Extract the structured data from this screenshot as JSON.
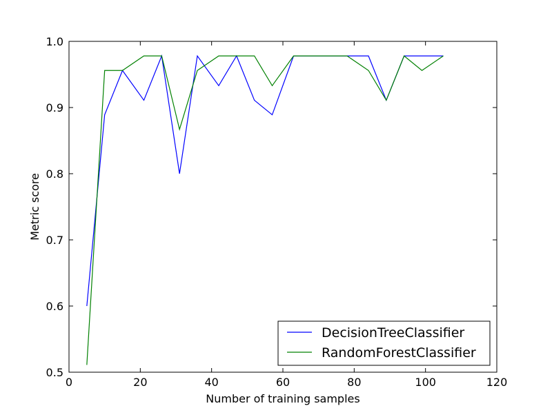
{
  "chart_data": {
    "type": "line",
    "title": "",
    "xlabel": "Number of training samples",
    "ylabel": "Metric score",
    "xlim": [
      0,
      120
    ],
    "ylim": [
      0.5,
      1.0
    ],
    "x_ticks": [
      0,
      20,
      40,
      60,
      80,
      100,
      120
    ],
    "y_ticks": [
      0.5,
      0.6,
      0.7,
      0.8,
      0.9,
      1.0
    ],
    "x_tick_labels": [
      "0",
      "20",
      "40",
      "60",
      "80",
      "100",
      "120"
    ],
    "y_tick_labels": [
      "0.5",
      "0.6",
      "0.7",
      "0.8",
      "0.9",
      "1.0"
    ],
    "grid": false,
    "legend_position": "lower-right",
    "x": [
      5,
      10,
      15,
      21,
      26,
      31,
      36,
      42,
      47,
      52,
      57,
      63,
      68,
      73,
      78,
      84,
      89,
      94,
      99,
      105
    ],
    "series": [
      {
        "name": "DecisionTreeClassifier",
        "color": "#0000ff",
        "values": [
          0.6,
          0.889,
          0.956,
          0.911,
          0.978,
          0.8,
          0.978,
          0.933,
          0.978,
          0.911,
          0.889,
          0.978,
          0.978,
          0.978,
          0.978,
          0.978,
          0.911,
          0.978,
          0.978,
          0.978
        ]
      },
      {
        "name": "RandomForestClassifier",
        "color": "#008000",
        "values": [
          0.511,
          0.956,
          0.956,
          0.978,
          0.978,
          0.867,
          0.956,
          0.978,
          0.978,
          0.978,
          0.933,
          0.978,
          0.978,
          0.978,
          0.978,
          0.956,
          0.911,
          0.978,
          0.956,
          0.978
        ]
      }
    ]
  }
}
